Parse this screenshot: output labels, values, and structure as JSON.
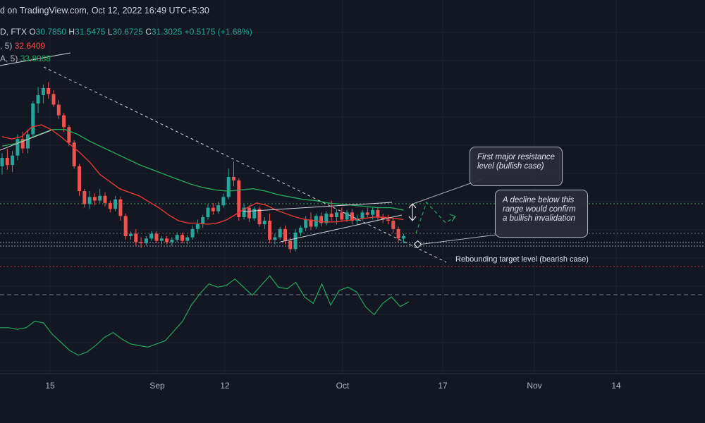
{
  "header": {
    "published": "d on TradingView.com, Oct 12, 2022 16:49 UTC+5:30",
    "symbol_prefix": "D, FTX",
    "open_label": "O",
    "open": "30.7850",
    "high_label": "H",
    "high": "31.5475",
    "low_label": "L",
    "low": "30.6725",
    "close_label": "C",
    "close": "31.3025",
    "change": "+0.5175 (+1.68%)",
    "ma1_prefix": ", 5)",
    "ma1_value": "32.6409",
    "ma2_prefix": "A, 5)",
    "ma2_value": "33.8088"
  },
  "annotations": {
    "resistance_note": "First major resistance level (bullish case)",
    "invalidation_note": "A decline below this range would confirm a bullish invalidation",
    "target_label": "Rebounding target level (bearish case)"
  },
  "colors": {
    "background": "#131722",
    "up": "#26a69a",
    "down": "#ef5350",
    "ma_fast": "#e53935",
    "ma_slow": "#26a65b",
    "rsi": "#26a65b",
    "grid": "#1e222d"
  },
  "chart_data": {
    "type": "candlestick",
    "title": "",
    "x_ticks": [
      "15",
      "Sep",
      "12",
      "Oct",
      "17",
      "Nov",
      "14"
    ],
    "candles": [
      {
        "o": 23.5,
        "h": 24.6,
        "l": 22.8,
        "c": 24.2
      },
      {
        "o": 24.2,
        "h": 25.0,
        "l": 23.2,
        "c": 23.6
      },
      {
        "o": 23.6,
        "h": 24.8,
        "l": 23.0,
        "c": 24.4
      },
      {
        "o": 24.4,
        "h": 26.2,
        "l": 24.0,
        "c": 25.8
      },
      {
        "o": 25.8,
        "h": 26.4,
        "l": 24.6,
        "c": 25.0
      },
      {
        "o": 25.0,
        "h": 26.6,
        "l": 24.6,
        "c": 26.2
      },
      {
        "o": 26.2,
        "h": 29.0,
        "l": 26.0,
        "c": 28.8
      },
      {
        "o": 28.8,
        "h": 30.2,
        "l": 28.0,
        "c": 29.5
      },
      {
        "o": 29.5,
        "h": 30.4,
        "l": 28.8,
        "c": 30.1
      },
      {
        "o": 30.1,
        "h": 30.6,
        "l": 29.2,
        "c": 29.6
      },
      {
        "o": 29.6,
        "h": 29.9,
        "l": 28.5,
        "c": 28.7
      },
      {
        "o": 28.7,
        "h": 29.1,
        "l": 27.5,
        "c": 27.8
      },
      {
        "o": 27.8,
        "h": 28.0,
        "l": 26.4,
        "c": 26.8
      },
      {
        "o": 26.8,
        "h": 27.0,
        "l": 25.2,
        "c": 25.5
      },
      {
        "o": 25.5,
        "h": 25.7,
        "l": 23.3,
        "c": 23.5
      },
      {
        "o": 23.5,
        "h": 23.7,
        "l": 21.0,
        "c": 21.4
      },
      {
        "o": 21.4,
        "h": 21.6,
        "l": 20.0,
        "c": 20.3
      },
      {
        "o": 20.3,
        "h": 21.4,
        "l": 19.9,
        "c": 20.9
      },
      {
        "o": 20.9,
        "h": 21.2,
        "l": 20.2,
        "c": 20.6
      },
      {
        "o": 20.6,
        "h": 21.6,
        "l": 20.4,
        "c": 21.0
      },
      {
        "o": 21.0,
        "h": 21.3,
        "l": 20.1,
        "c": 20.4
      },
      {
        "o": 20.4,
        "h": 20.6,
        "l": 19.6,
        "c": 19.9
      },
      {
        "o": 19.9,
        "h": 21.0,
        "l": 19.7,
        "c": 20.7
      },
      {
        "o": 20.7,
        "h": 20.9,
        "l": 18.9,
        "c": 19.3
      },
      {
        "o": 19.3,
        "h": 19.5,
        "l": 17.3,
        "c": 17.6
      },
      {
        "o": 17.6,
        "h": 18.0,
        "l": 17.3,
        "c": 17.8
      },
      {
        "o": 17.8,
        "h": 18.2,
        "l": 16.8,
        "c": 17.1
      },
      {
        "o": 17.1,
        "h": 17.5,
        "l": 16.6,
        "c": 17.0
      },
      {
        "o": 17.0,
        "h": 17.6,
        "l": 16.8,
        "c": 17.4
      },
      {
        "o": 17.4,
        "h": 18.0,
        "l": 17.2,
        "c": 17.8
      },
      {
        "o": 17.8,
        "h": 18.0,
        "l": 17.0,
        "c": 17.2
      },
      {
        "o": 17.2,
        "h": 17.6,
        "l": 16.9,
        "c": 17.4
      },
      {
        "o": 17.4,
        "h": 17.6,
        "l": 16.9,
        "c": 17.1
      },
      {
        "o": 17.1,
        "h": 17.5,
        "l": 16.8,
        "c": 17.3
      },
      {
        "o": 17.3,
        "h": 17.9,
        "l": 17.1,
        "c": 17.7
      },
      {
        "o": 17.7,
        "h": 17.9,
        "l": 17.0,
        "c": 17.2
      },
      {
        "o": 17.2,
        "h": 17.7,
        "l": 16.9,
        "c": 17.5
      },
      {
        "o": 17.5,
        "h": 18.5,
        "l": 17.3,
        "c": 18.2
      },
      {
        "o": 18.2,
        "h": 19.0,
        "l": 17.9,
        "c": 18.6
      },
      {
        "o": 18.6,
        "h": 19.4,
        "l": 18.3,
        "c": 19.2
      },
      {
        "o": 19.2,
        "h": 20.3,
        "l": 19.0,
        "c": 20.0
      },
      {
        "o": 20.0,
        "h": 20.4,
        "l": 19.4,
        "c": 19.7
      },
      {
        "o": 19.7,
        "h": 20.5,
        "l": 19.5,
        "c": 20.2
      },
      {
        "o": 20.2,
        "h": 21.2,
        "l": 20.0,
        "c": 20.9
      },
      {
        "o": 20.9,
        "h": 23.3,
        "l": 20.7,
        "c": 22.6
      },
      {
        "o": 22.6,
        "h": 23.9,
        "l": 21.8,
        "c": 22.3
      },
      {
        "o": 22.3,
        "h": 22.5,
        "l": 18.9,
        "c": 19.2
      },
      {
        "o": 19.2,
        "h": 20.3,
        "l": 19.0,
        "c": 20.0
      },
      {
        "o": 20.0,
        "h": 20.2,
        "l": 18.8,
        "c": 19.1
      },
      {
        "o": 19.1,
        "h": 20.1,
        "l": 18.9,
        "c": 19.9
      },
      {
        "o": 19.9,
        "h": 20.1,
        "l": 18.4,
        "c": 18.6
      },
      {
        "o": 18.6,
        "h": 19.2,
        "l": 18.2,
        "c": 18.9
      },
      {
        "o": 18.9,
        "h": 19.5,
        "l": 17.0,
        "c": 17.3
      },
      {
        "o": 17.3,
        "h": 17.8,
        "l": 16.9,
        "c": 17.5
      },
      {
        "o": 17.5,
        "h": 18.4,
        "l": 17.3,
        "c": 18.2
      },
      {
        "o": 18.2,
        "h": 18.5,
        "l": 16.9,
        "c": 17.2
      },
      {
        "o": 17.2,
        "h": 17.5,
        "l": 16.2,
        "c": 16.5
      },
      {
        "o": 16.5,
        "h": 18.2,
        "l": 16.3,
        "c": 17.9
      },
      {
        "o": 17.9,
        "h": 18.5,
        "l": 17.6,
        "c": 18.3
      },
      {
        "o": 18.3,
        "h": 19.3,
        "l": 18.0,
        "c": 19.0
      },
      {
        "o": 19.0,
        "h": 19.6,
        "l": 18.1,
        "c": 18.4
      },
      {
        "o": 18.4,
        "h": 19.5,
        "l": 18.2,
        "c": 19.3
      },
      {
        "o": 19.3,
        "h": 19.6,
        "l": 18.4,
        "c": 18.7
      },
      {
        "o": 18.7,
        "h": 19.7,
        "l": 18.5,
        "c": 19.5
      },
      {
        "o": 19.5,
        "h": 20.6,
        "l": 18.9,
        "c": 19.2
      },
      {
        "o": 19.2,
        "h": 19.9,
        "l": 18.6,
        "c": 19.6
      },
      {
        "o": 19.6,
        "h": 20.0,
        "l": 18.8,
        "c": 19.0
      },
      {
        "o": 19.0,
        "h": 19.8,
        "l": 18.8,
        "c": 19.6
      },
      {
        "o": 19.6,
        "h": 19.9,
        "l": 18.6,
        "c": 18.9
      },
      {
        "o": 18.9,
        "h": 19.4,
        "l": 18.5,
        "c": 19.1
      },
      {
        "o": 19.1,
        "h": 19.8,
        "l": 18.9,
        "c": 19.6
      },
      {
        "o": 19.6,
        "h": 20.0,
        "l": 19.2,
        "c": 19.4
      },
      {
        "o": 19.4,
        "h": 20.0,
        "l": 19.0,
        "c": 19.8
      },
      {
        "o": 19.8,
        "h": 20.0,
        "l": 18.9,
        "c": 19.2
      },
      {
        "o": 19.2,
        "h": 19.5,
        "l": 18.7,
        "c": 19.0
      },
      {
        "o": 19.0,
        "h": 19.4,
        "l": 18.6,
        "c": 18.9
      },
      {
        "o": 18.9,
        "h": 19.1,
        "l": 17.9,
        "c": 18.2
      },
      {
        "o": 18.2,
        "h": 18.4,
        "l": 17.1,
        "c": 17.4
      },
      {
        "o": 17.4,
        "h": 17.8,
        "l": 17.0,
        "c": 17.6
      }
    ],
    "ma_fast": [
      26.0,
      25.8,
      26.0,
      26.8,
      27.0,
      26.6,
      26.0,
      25.3,
      24.6,
      23.8,
      22.8,
      22.2,
      21.6,
      21.3,
      21.0,
      20.5,
      20.0,
      19.4,
      18.9,
      18.7,
      18.7,
      18.6,
      18.7,
      19.0,
      19.5,
      20.0,
      20.4,
      20.2,
      19.8,
      19.5,
      19.2,
      19.0,
      18.9,
      18.8,
      18.8,
      18.9,
      19.0,
      19.1,
      19.2,
      19.2,
      19.1,
      19.0
    ],
    "ma_slow": [
      25.2,
      25.4,
      25.8,
      26.2,
      26.6,
      26.6,
      26.2,
      25.6,
      25.1,
      24.6,
      24.1,
      23.6,
      23.2,
      22.8,
      22.4,
      22.0,
      21.7,
      21.5,
      21.4,
      21.5,
      21.6,
      21.4,
      21.1,
      20.9,
      20.7,
      20.6,
      20.4,
      20.3,
      20.2,
      20.1,
      20.0,
      20.0,
      19.8
    ],
    "rsi": [
      44,
      44,
      43,
      44,
      48,
      47,
      40,
      35,
      30,
      27,
      29,
      33,
      38,
      41,
      37,
      34,
      33,
      32,
      34,
      36,
      42,
      48,
      58,
      65,
      71,
      69,
      70,
      74,
      69,
      64,
      70,
      76,
      69,
      68,
      72,
      63,
      59,
      71,
      58,
      67,
      69,
      66,
      57,
      52,
      59,
      63,
      57,
      60
    ]
  }
}
